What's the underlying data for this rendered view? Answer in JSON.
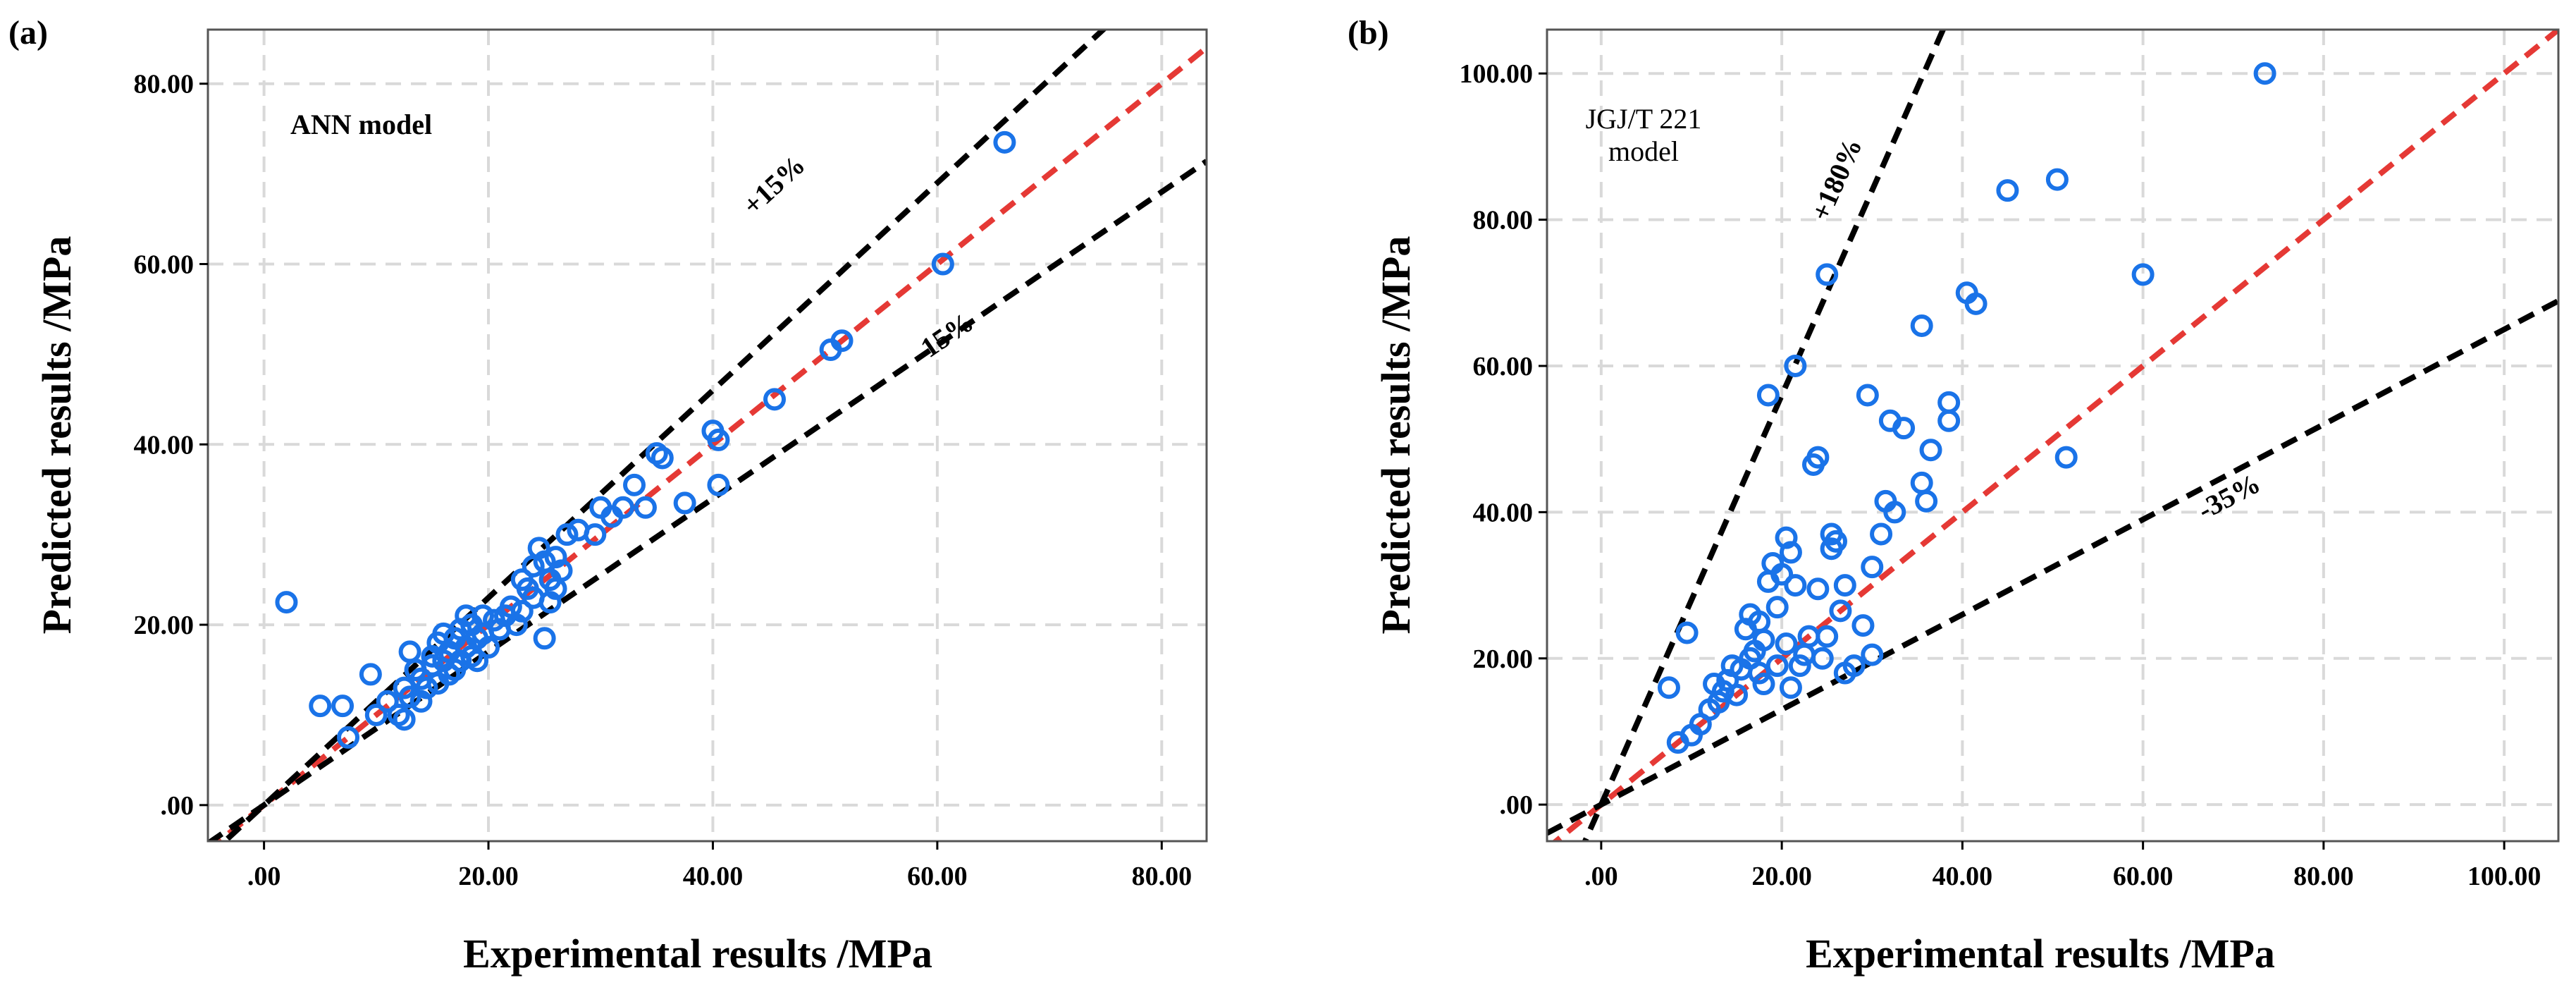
{
  "chart_data": [
    {
      "type": "scatter",
      "panel_label": "(a)",
      "model_label": [
        "ANN model"
      ],
      "xlabel": "Experimental results /MPa",
      "ylabel": "Predicted results /MPa",
      "xlim": [
        -5,
        84
      ],
      "ylim": [
        -4,
        86
      ],
      "xticks": [
        0,
        20,
        40,
        60,
        80
      ],
      "yticks": [
        0,
        20,
        40,
        60,
        80
      ],
      "xtick_labels": [
        ".00",
        "20.00",
        "40.00",
        "60.00",
        "80.00"
      ],
      "ytick_labels": [
        ".00",
        "20.00",
        "40.00",
        "60.00",
        "80.00"
      ],
      "grid": true,
      "reference_lines": [
        {
          "name": "equality",
          "slope": 1.0,
          "color": "#e53935",
          "label": ""
        },
        {
          "name": "upper",
          "slope": 1.15,
          "color": "#000000",
          "label": "+15%",
          "label_at": [
            46,
            68
          ]
        },
        {
          "name": "lower",
          "slope": 0.85,
          "color": "#000000",
          "label": "-15%",
          "label_at": [
            61,
            51
          ]
        }
      ],
      "points": [
        [
          2,
          22.5
        ],
        [
          5,
          11
        ],
        [
          7,
          11
        ],
        [
          7.5,
          7.5
        ],
        [
          9.5,
          14.5
        ],
        [
          10,
          10
        ],
        [
          11,
          11.5
        ],
        [
          12,
          10
        ],
        [
          12.5,
          9.5
        ],
        [
          12.5,
          13
        ],
        [
          13,
          17
        ],
        [
          13,
          12
        ],
        [
          13.5,
          15
        ],
        [
          14,
          11.5
        ],
        [
          14,
          14
        ],
        [
          14.5,
          13
        ],
        [
          15,
          15.5
        ],
        [
          15,
          16.5
        ],
        [
          15.5,
          13.5
        ],
        [
          15.5,
          18
        ],
        [
          16,
          19
        ],
        [
          16,
          16
        ],
        [
          16.5,
          14.5
        ],
        [
          16.5,
          17
        ],
        [
          17,
          15
        ],
        [
          17,
          18.5
        ],
        [
          17.5,
          16
        ],
        [
          17.5,
          19.5
        ],
        [
          18,
          17.5
        ],
        [
          18,
          21
        ],
        [
          18.5,
          16.5
        ],
        [
          18.5,
          20
        ],
        [
          19,
          18.5
        ],
        [
          19,
          16
        ],
        [
          19.5,
          21
        ],
        [
          19.5,
          19
        ],
        [
          20,
          17.5
        ],
        [
          20.5,
          20.5
        ],
        [
          21,
          19.5
        ],
        [
          21.5,
          21
        ],
        [
          22,
          22
        ],
        [
          22.5,
          20
        ],
        [
          23,
          21.5
        ],
        [
          23,
          25
        ],
        [
          23.5,
          24
        ],
        [
          24,
          23
        ],
        [
          24,
          26.5
        ],
        [
          24.5,
          28.5
        ],
        [
          25,
          27
        ],
        [
          25,
          18.5
        ],
        [
          25.5,
          25
        ],
        [
          25.5,
          22.5
        ],
        [
          26,
          24
        ],
        [
          26,
          27.5
        ],
        [
          26.5,
          26
        ],
        [
          27,
          30
        ],
        [
          28,
          30.5
        ],
        [
          29.5,
          30
        ],
        [
          30,
          33
        ],
        [
          31,
          32
        ],
        [
          32,
          33
        ],
        [
          33,
          35.5
        ],
        [
          34,
          33
        ],
        [
          35,
          39
        ],
        [
          35.5,
          38.5
        ],
        [
          37.5,
          33.5
        ],
        [
          40,
          41.5
        ],
        [
          40.5,
          40.5
        ],
        [
          40.5,
          35.5
        ],
        [
          45.5,
          45
        ],
        [
          50.5,
          50.5
        ],
        [
          51.5,
          51.5
        ],
        [
          60.5,
          60
        ],
        [
          66,
          73.5
        ]
      ]
    },
    {
      "type": "scatter",
      "panel_label": "(b)",
      "model_label": [
        "JGJ/T 221",
        "model"
      ],
      "xlabel": "Experimental results /MPa",
      "ylabel": "Predicted results /MPa",
      "xlim": [
        -6,
        106
      ],
      "ylim": [
        -5,
        106
      ],
      "xticks": [
        0,
        20,
        40,
        60,
        80,
        100
      ],
      "yticks": [
        0,
        20,
        40,
        60,
        80,
        100
      ],
      "xtick_labels": [
        ".00",
        "20.00",
        "40.00",
        "60.00",
        "80.00",
        "100.00"
      ],
      "ytick_labels": [
        ".00",
        "20.00",
        "40.00",
        "60.00",
        "80.00",
        "100.00"
      ],
      "grid": true,
      "reference_lines": [
        {
          "name": "equality",
          "slope": 1.0,
          "color": "#e53935",
          "label": ""
        },
        {
          "name": "upper",
          "slope": 2.8,
          "color": "#000000",
          "label": "+180%",
          "label_at": [
            27,
            85
          ]
        },
        {
          "name": "lower",
          "slope": 0.65,
          "color": "#000000",
          "label": "-35%",
          "label_at": [
            70,
            41
          ]
        }
      ],
      "points": [
        [
          7.5,
          16
        ],
        [
          8.5,
          8.5
        ],
        [
          9.5,
          23.5
        ],
        [
          10,
          9.5
        ],
        [
          11,
          11
        ],
        [
          12,
          13
        ],
        [
          12.5,
          16.5
        ],
        [
          13,
          14
        ],
        [
          13.5,
          15.5
        ],
        [
          14,
          17
        ],
        [
          14.5,
          19
        ],
        [
          15,
          15
        ],
        [
          15.5,
          18.5
        ],
        [
          16,
          24
        ],
        [
          16.5,
          26
        ],
        [
          16.5,
          20
        ],
        [
          17,
          21
        ],
        [
          17.5,
          25
        ],
        [
          17.5,
          18
        ],
        [
          18,
          16.5
        ],
        [
          18,
          22.5
        ],
        [
          18.5,
          30.5
        ],
        [
          18.5,
          56
        ],
        [
          19,
          33
        ],
        [
          19.5,
          27
        ],
        [
          19.5,
          19
        ],
        [
          20,
          31.5
        ],
        [
          20.5,
          36.5
        ],
        [
          20.5,
          22
        ],
        [
          21,
          34.5
        ],
        [
          21,
          16
        ],
        [
          21.5,
          60
        ],
        [
          21.5,
          30
        ],
        [
          22,
          19
        ],
        [
          22.5,
          20.5
        ],
        [
          23,
          23
        ],
        [
          23.5,
          46.5
        ],
        [
          24,
          29.5
        ],
        [
          24,
          47.5
        ],
        [
          24.5,
          20
        ],
        [
          25,
          72.5
        ],
        [
          25,
          23
        ],
        [
          25.5,
          37
        ],
        [
          25.5,
          35
        ],
        [
          26,
          36
        ],
        [
          26.5,
          26.5
        ],
        [
          27,
          30
        ],
        [
          27,
          18
        ],
        [
          28,
          19
        ],
        [
          29,
          24.5
        ],
        [
          29.5,
          56
        ],
        [
          30,
          32.5
        ],
        [
          30,
          20.5
        ],
        [
          31,
          37
        ],
        [
          31.5,
          41.5
        ],
        [
          32,
          52.5
        ],
        [
          32.5,
          40
        ],
        [
          33.5,
          51.5
        ],
        [
          35.5,
          44
        ],
        [
          35.5,
          65.5
        ],
        [
          36,
          41.5
        ],
        [
          36.5,
          48.5
        ],
        [
          38.5,
          52.5
        ],
        [
          38.5,
          55
        ],
        [
          40.5,
          70
        ],
        [
          41.5,
          68.5
        ],
        [
          45,
          84
        ],
        [
          50.5,
          85.5
        ],
        [
          51.5,
          47.5
        ],
        [
          60,
          72.5
        ],
        [
          73.5,
          100
        ]
      ]
    }
  ]
}
